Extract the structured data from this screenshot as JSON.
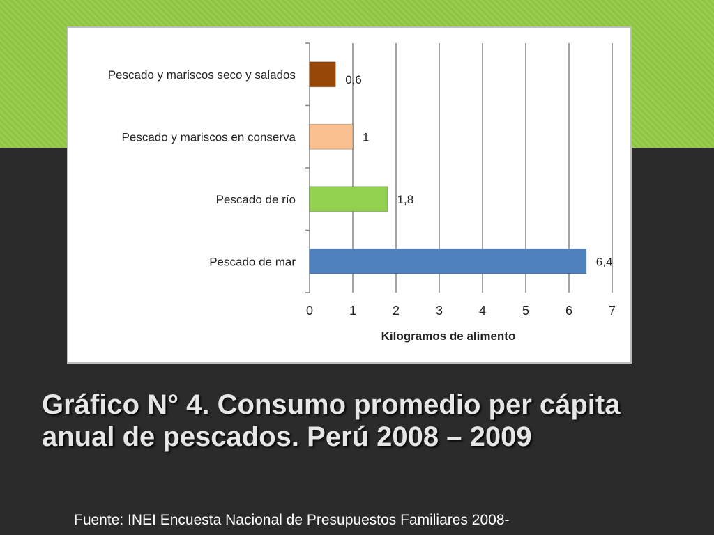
{
  "slide": {
    "title": "Gráfico N° 4. Consumo promedio per cápita anual  de pescados. Perú 2008 – 2009",
    "source": "Fuente: INEI Encuesta Nacional de Presupuestos Familiares 2008-"
  },
  "colors": {
    "band": "#8cc63f",
    "background": "#2b2b2b",
    "title_text": "#e6e6e6",
    "source_text": "#ffffff"
  },
  "chart_data": {
    "type": "bar",
    "orientation": "horizontal",
    "title": "",
    "xlabel": "Kilogramos de alimento",
    "ylabel": "",
    "xlim": [
      0,
      7
    ],
    "x_ticks": [
      "0",
      "1",
      "2",
      "3",
      "4",
      "5",
      "6",
      "7"
    ],
    "grid": "vertical",
    "legend": "none",
    "categories": [
      "Pescado y mariscos seco y salados",
      "Pescado y mariscos en conserva",
      "Pescado de río",
      "Pescado de mar"
    ],
    "values": [
      0.6,
      1,
      1.8,
      6.4
    ],
    "value_labels": [
      "0,6",
      "1",
      "1,8",
      "6,4"
    ],
    "bar_colors": [
      "#974706",
      "#fac090",
      "#92d050",
      "#4f81bd"
    ]
  }
}
